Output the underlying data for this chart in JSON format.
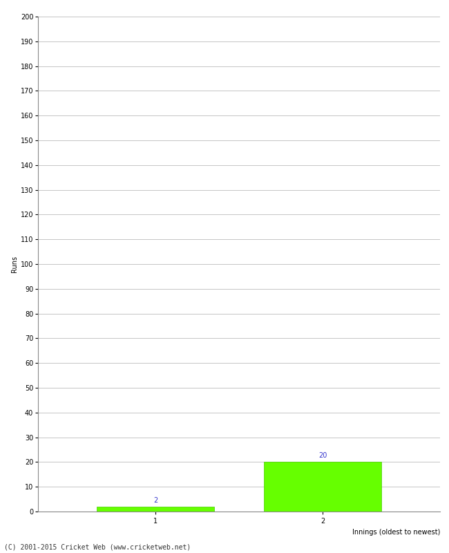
{
  "categories": [
    "1",
    "2"
  ],
  "values": [
    2,
    20
  ],
  "bar_color": "#66ff00",
  "bar_edge_color": "#44cc00",
  "ylabel": "Runs",
  "xlabel": "Innings (oldest to newest)",
  "ylim": [
    0,
    200
  ],
  "yticks": [
    0,
    10,
    20,
    30,
    40,
    50,
    60,
    70,
    80,
    90,
    100,
    110,
    120,
    130,
    140,
    150,
    160,
    170,
    180,
    190,
    200
  ],
  "annotation_color": "#3333cc",
  "annotation_fontsize": 7,
  "footer": "(C) 2001-2015 Cricket Web (www.cricketweb.net)",
  "background_color": "#ffffff",
  "grid_color": "#bbbbbb",
  "tick_label_fontsize": 7,
  "ylabel_fontsize": 7,
  "xlabel_fontsize": 7,
  "footer_fontsize": 7
}
